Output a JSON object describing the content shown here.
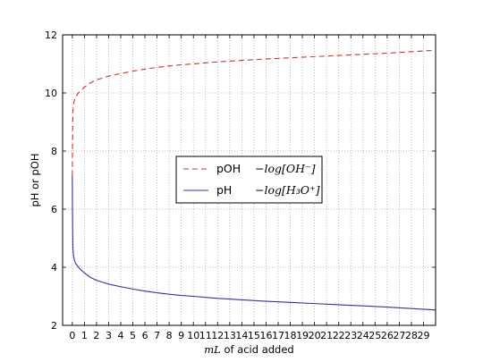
{
  "chart_data": {
    "type": "line",
    "xlabel_math": "mL",
    "xlabel_text": " of acid added",
    "ylabel": "pH or pOH",
    "xlim": [
      -0.8,
      30
    ],
    "ylim": [
      2,
      12
    ],
    "x_ticks": [
      0,
      1,
      2,
      3,
      4,
      5,
      6,
      7,
      8,
      9,
      10,
      11,
      12,
      13,
      14,
      15,
      16,
      17,
      18,
      19,
      20,
      21,
      22,
      23,
      24,
      25,
      26,
      27,
      28,
      29
    ],
    "y_ticks": [
      2,
      4,
      6,
      8,
      10,
      12
    ],
    "grid": true,
    "legend_position": "center",
    "series": [
      {
        "name": "pOH",
        "math": "−log[OH⁻]",
        "color": "#cc3333",
        "style": "dashed",
        "x": [
          0,
          0.01,
          0.03,
          0.05,
          0.1,
          0.2,
          0.3,
          0.5,
          0.75,
          1,
          1.5,
          2,
          3,
          4,
          5,
          6,
          7,
          8,
          9,
          10,
          12,
          14,
          16,
          18,
          20,
          22,
          24,
          26,
          28,
          30
        ],
        "values": [
          7.15,
          7.7,
          8.8,
          9.35,
          9.6,
          9.8,
          9.88,
          10.0,
          10.1,
          10.2,
          10.35,
          10.45,
          10.58,
          10.67,
          10.75,
          10.82,
          10.88,
          10.93,
          10.97,
          11.0,
          11.07,
          11.12,
          11.17,
          11.21,
          11.25,
          11.29,
          11.33,
          11.37,
          11.42,
          11.47
        ]
      },
      {
        "name": "pH",
        "math": "−log[H₃O⁺]",
        "color": "#333399",
        "style": "solid",
        "x": [
          0,
          0.01,
          0.03,
          0.05,
          0.1,
          0.2,
          0.3,
          0.5,
          0.75,
          1,
          1.5,
          2,
          3,
          4,
          5,
          6,
          7,
          8,
          9,
          10,
          12,
          14,
          16,
          18,
          20,
          22,
          24,
          26,
          28,
          30
        ],
        "values": [
          7.15,
          6.3,
          5.2,
          4.65,
          4.4,
          4.2,
          4.12,
          4.0,
          3.9,
          3.8,
          3.65,
          3.55,
          3.42,
          3.33,
          3.25,
          3.18,
          3.12,
          3.07,
          3.03,
          3.0,
          2.93,
          2.88,
          2.83,
          2.79,
          2.75,
          2.71,
          2.67,
          2.63,
          2.58,
          2.53
        ]
      }
    ]
  }
}
